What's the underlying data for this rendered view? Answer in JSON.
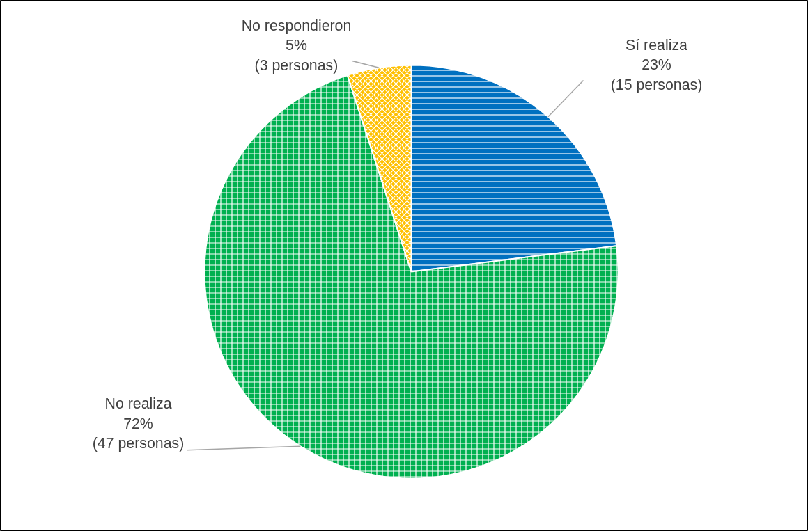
{
  "chart_data": {
    "type": "pie",
    "categories": [
      "Sí realiza",
      "No realiza",
      "No respondieron"
    ],
    "values": [
      23,
      72,
      5
    ],
    "value_labels": [
      "23%\n(15 personas)",
      "72%\n(47 personas)",
      "5%\n(3 personas)"
    ],
    "colors": [
      "#0070c0",
      "#00b050",
      "#ffc000"
    ],
    "legend": false
  }
}
